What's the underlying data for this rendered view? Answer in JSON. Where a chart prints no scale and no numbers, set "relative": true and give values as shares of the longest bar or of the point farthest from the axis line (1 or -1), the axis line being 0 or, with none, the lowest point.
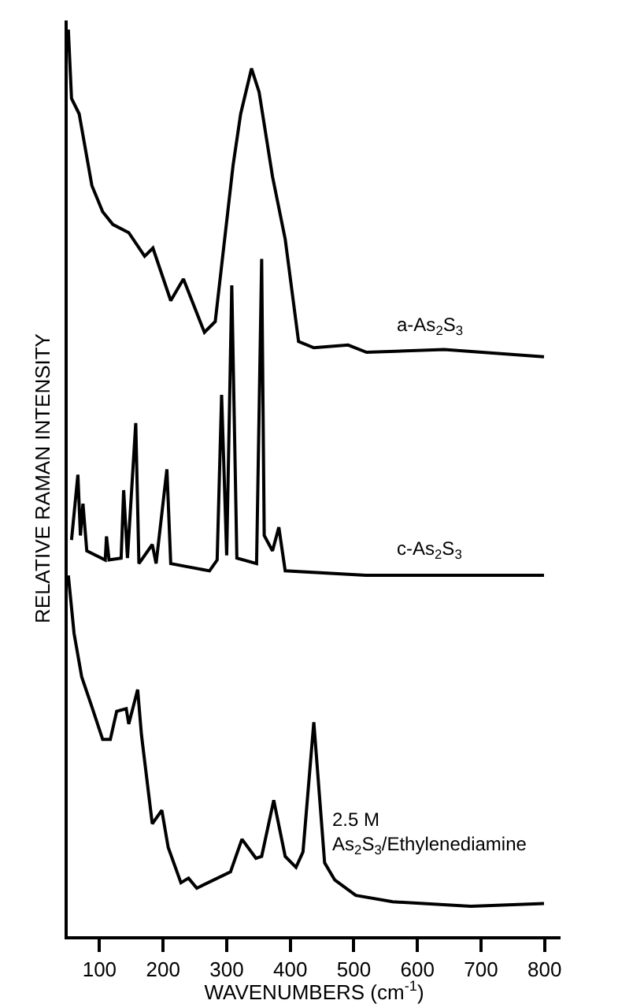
{
  "chart_data": {
    "type": "line",
    "relative": true,
    "xlabel": "WAVENUMBERS (cm$^{-1}$)",
    "ylabel": "RELATIVE RAMAN INTENSITY",
    "xlim": [
      50,
      825
    ],
    "xticks": [
      100,
      200,
      300,
      400,
      500,
      600,
      700,
      800
    ],
    "grid": false,
    "legend": false,
    "marker": "none",
    "line_style": "solid",
    "series": [
      {
        "name": "a-As$_{2}$S$_{3}$",
        "color": "#000000",
        "x": [
          51,
          56,
          68,
          88,
          105,
          121,
          146,
          171,
          184,
          212,
          232,
          265,
          282,
          310,
          322,
          339,
          351,
          372,
          392,
          413,
          437,
          491,
          520,
          642,
          799
        ],
        "values": [
          1.0,
          0.924,
          0.907,
          0.828,
          0.799,
          0.785,
          0.776,
          0.75,
          0.759,
          0.701,
          0.725,
          0.666,
          0.678,
          0.85,
          0.907,
          0.957,
          0.931,
          0.838,
          0.769,
          0.656,
          0.649,
          0.652,
          0.644,
          0.647,
          0.639
        ]
      },
      {
        "name": "c-As$_{2}$S$_{3}$",
        "color": "#000000",
        "x": [
          56,
          66,
          70,
          74,
          80,
          109,
          111,
          115,
          134,
          138,
          144,
          157,
          162,
          183,
          189,
          206,
          212,
          273,
          285,
          292,
          300,
          308,
          316,
          347,
          355,
          359,
          372,
          382,
          392,
          519,
          799
        ],
        "values": [
          0.437,
          0.509,
          0.442,
          0.477,
          0.425,
          0.415,
          0.441,
          0.415,
          0.417,
          0.492,
          0.417,
          0.566,
          0.411,
          0.432,
          0.411,
          0.515,
          0.411,
          0.403,
          0.415,
          0.597,
          0.42,
          0.718,
          0.417,
          0.411,
          0.747,
          0.442,
          0.425,
          0.451,
          0.403,
          0.398,
          0.398
        ]
      },
      {
        "name": "2.5 M As$_{2}$S$_{3}$/Ethylenediamine",
        "color": "#000000",
        "x": [
          51,
          60,
          72,
          88,
          105,
          117,
          127,
          142,
          146,
          160,
          166,
          183,
          198,
          208,
          228,
          240,
          253,
          306,
          324,
          346,
          355,
          374,
          392,
          409,
          420,
          437,
          454,
          470,
          503,
          561,
          684,
          799
        ],
        "values": [
          0.398,
          0.334,
          0.286,
          0.253,
          0.217,
          0.217,
          0.248,
          0.251,
          0.234,
          0.272,
          0.222,
          0.124,
          0.139,
          0.098,
          0.059,
          0.064,
          0.053,
          0.071,
          0.107,
          0.086,
          0.088,
          0.15,
          0.088,
          0.076,
          0.093,
          0.236,
          0.081,
          0.062,
          0.045,
          0.038,
          0.033,
          0.036
        ]
      }
    ]
  }
}
